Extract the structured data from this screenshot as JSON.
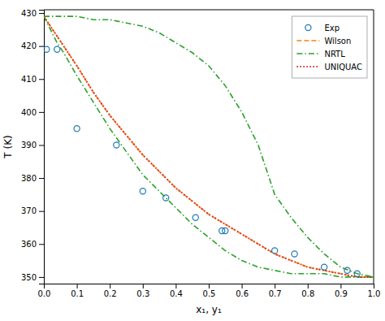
{
  "chart_data": {
    "type": "line",
    "xlabel": "x₁, y₁",
    "ylabel": "T (K)",
    "xlim": [
      0.0,
      1.0
    ],
    "ylim": [
      348,
      431
    ],
    "xticks": [
      {
        "value": 0.0,
        "label": "0.0"
      },
      0.1,
      0.2,
      0.3,
      0.4,
      0.5,
      0.6,
      0.7,
      0.8,
      0.9,
      {
        "value": 1.0,
        "label": "1.0"
      }
    ],
    "yticks": [
      350,
      360,
      370,
      380,
      390,
      400,
      410,
      420,
      430
    ],
    "grid": false,
    "legend": "upper-right",
    "series": [
      {
        "name": "Exp",
        "type": "scatter",
        "marker": "circle",
        "x": [
          0.008,
          0.04,
          0.1,
          0.22,
          0.3,
          0.37,
          0.46,
          0.54,
          0.55,
          0.7,
          0.76,
          0.85,
          0.92,
          0.95
        ],
        "values": [
          419,
          419,
          395,
          390,
          376,
          374,
          368,
          364,
          364,
          358,
          357,
          353,
          352,
          351
        ]
      },
      {
        "name": "Wilson",
        "type": "line",
        "line_style": "dashed",
        "x": [
          0.0,
          0.02,
          0.04,
          0.06,
          0.1,
          0.15,
          0.2,
          0.25,
          0.3,
          0.35,
          0.4,
          0.45,
          0.5,
          0.55,
          0.6,
          0.65,
          0.7,
          0.75,
          0.8,
          0.85,
          0.9,
          0.95,
          1.0
        ],
        "values": [
          429,
          426,
          423,
          420,
          414,
          406,
          399,
          393,
          387,
          382,
          377,
          373,
          369,
          366,
          363,
          360,
          357,
          355,
          353,
          352,
          351,
          350,
          350
        ]
      },
      {
        "name": "NRTL",
        "type": "line",
        "line_style": "dashdot",
        "x": [
          0.0,
          0.01,
          0.02,
          0.04,
          0.06,
          0.1,
          0.15,
          0.2,
          0.25,
          0.3,
          0.35,
          0.4,
          0.45,
          0.5,
          0.55,
          0.6,
          0.65,
          0.7,
          0.75,
          0.8,
          0.85,
          0.9,
          0.95,
          1.0
        ],
        "values": [
          429,
          427,
          425,
          421,
          418,
          411,
          403,
          395,
          388,
          381,
          376,
          371,
          366,
          362,
          358,
          355,
          353,
          352,
          351,
          351,
          351,
          350,
          350,
          350
        ]
      },
      {
        "name": "NRTL",
        "type": "line",
        "line_style": "dashdot",
        "x": [
          0.0,
          0.05,
          0.1,
          0.15,
          0.2,
          0.25,
          0.3,
          0.35,
          0.4,
          0.45,
          0.5,
          0.55,
          0.6,
          0.65,
          0.7,
          0.75,
          0.8,
          0.85,
          0.9,
          0.95,
          1.0
        ],
        "values": [
          429,
          429,
          429,
          428,
          428,
          427,
          426,
          424,
          421,
          418,
          414,
          408,
          400,
          390,
          375,
          368,
          362,
          357,
          353,
          351,
          350
        ]
      },
      {
        "name": "UNIQUAC",
        "type": "line",
        "line_style": "dotted",
        "x": [
          0.0,
          0.02,
          0.04,
          0.06,
          0.1,
          0.15,
          0.2,
          0.25,
          0.3,
          0.35,
          0.4,
          0.45,
          0.5,
          0.55,
          0.6,
          0.65,
          0.7,
          0.75,
          0.8,
          0.85,
          0.9,
          0.95,
          1.0
        ],
        "values": [
          429,
          426,
          423,
          420,
          414,
          406,
          399,
          393,
          387,
          382,
          377,
          373,
          369,
          366,
          363,
          360,
          357,
          355,
          353,
          352,
          351,
          350,
          350
        ]
      }
    ]
  }
}
